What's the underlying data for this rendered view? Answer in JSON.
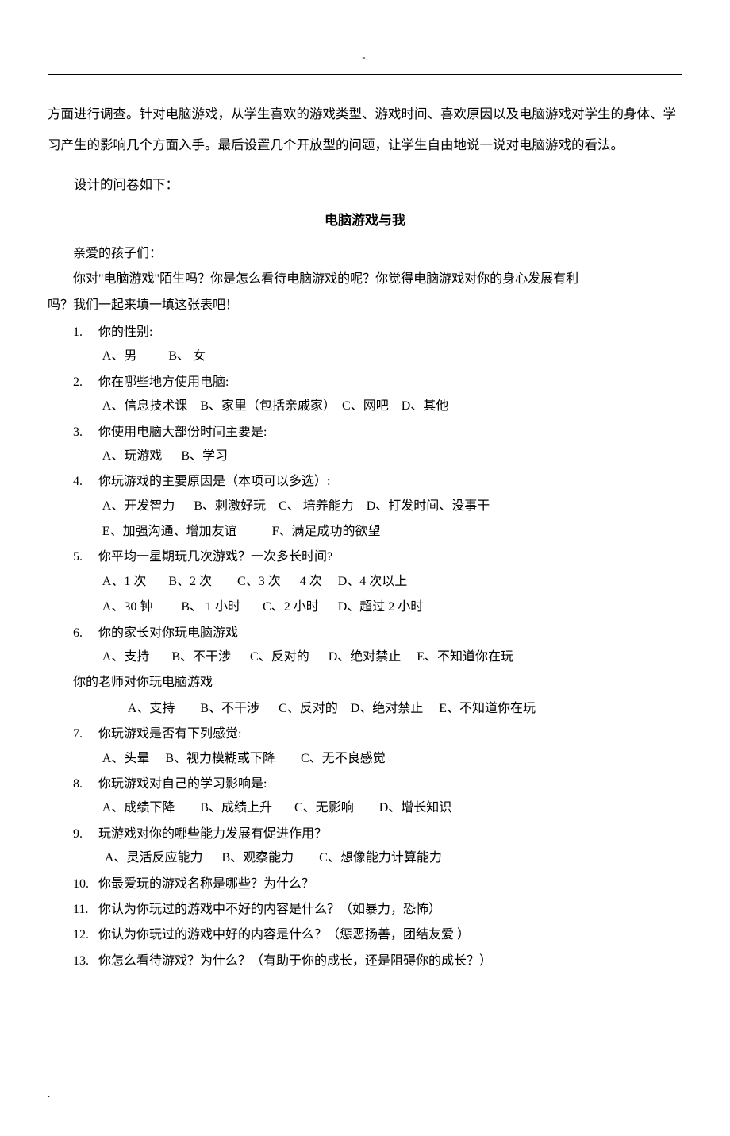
{
  "header_deco": "-.",
  "intro_paragraph": "方面进行调查。针对电脑游戏，从学生喜欢的游戏类型、游戏时间、喜欢原因以及电脑游戏对学生的身体、学习产生的影响几个方面入手。最后设置几个开放型的问题，让学生自由地说一说对电脑游戏的看法。",
  "design_line": "设计的问卷如下：",
  "title": "电脑游戏与我",
  "greeting": "亲爱的孩子们：",
  "preamble1": "你对\"电脑游戏\"陌生吗？你是怎么看待电脑游戏的呢？你觉得电脑游戏对你的身心发展有利",
  "preamble2": "吗？我们一起来填一填这张表吧！",
  "questions": [
    {
      "num": "1.",
      "text": "你的性别:",
      "options": [
        "A、男          B、 女"
      ]
    },
    {
      "num": "2.",
      "text": "你在哪些地方使用电脑:",
      "options": [
        "A、信息技术课    B、家里（包括亲戚家）  C、网吧    D、其他"
      ]
    },
    {
      "num": "3.",
      "text": "你使用电脑大部份时间主要是:",
      "options": [
        "A、玩游戏      B、学习"
      ]
    },
    {
      "num": "4.",
      "text": "你玩游戏的主要原因是（本项可以多选）:",
      "options": [
        "A、开发智力      B、刺激好玩    C、 培养能力    D、打发时间、没事干",
        "E、加强沟通、增加友谊           F、满足成功的欲望"
      ]
    },
    {
      "num": "5.",
      "text": "你平均一星期玩几次游戏？一次多长时间?",
      "options": [
        "A、1 次       B、2 次        C、3 次      4 次     D、4 次以上",
        "A、30 钟         B、 1 小时       C、2 小时      D、超过 2 小时"
      ]
    },
    {
      "num": "6.",
      "text": "你的家长对你玩电脑游戏",
      "options": [
        "A、支持       B、不干涉      C、反对的      D、绝对禁止     E、不知道你在玩"
      ],
      "sub_question": "你的老师对你玩电脑游戏",
      "sub_options": [
        "A、支持        B、不干涉      C、反对的    D、绝对禁止     E、不知道你在玩"
      ]
    },
    {
      "num": "7.",
      "text": "你玩游戏是否有下列感觉:",
      "options": [
        "A、头晕     B、视力模糊或下降        C、无不良感觉"
      ]
    },
    {
      "num": "8.",
      "text": "你玩游戏对自己的学习影响是:",
      "options": [
        "A、成绩下降        B、成绩上升       C、无影响        D、增长知识"
      ]
    },
    {
      "num": "9.",
      "text": "玩游戏对你的哪些能力发展有促进作用？",
      "options": [
        " A、灵活反应能力      B、观察能力        C、想像能力计算能力"
      ]
    },
    {
      "num": "10.",
      "text": "你最爱玩的游戏名称是哪些？为什么？",
      "options": []
    },
    {
      "num": "11.",
      "text": "你认为你玩过的游戏中不好的内容是什么？（如暴力，恐怖）",
      "options": []
    },
    {
      "num": "12.",
      "text": "你认为你玩过的游戏中好的内容是什么？（惩恶扬善，团结友爱  ）",
      "options": []
    },
    {
      "num": "13.",
      "text": "你怎么看待游戏？为什么？（有助于你的成长，还是阻碍你的成长？）",
      "options": []
    }
  ],
  "footer": "."
}
